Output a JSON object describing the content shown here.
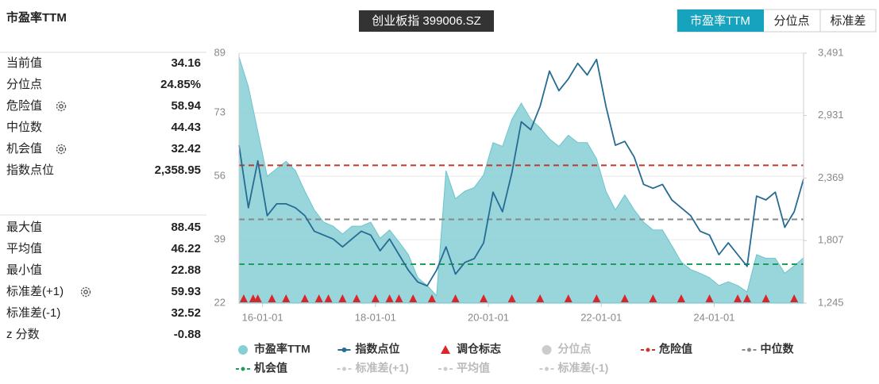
{
  "header": {
    "title": "市盈率TTM",
    "index_label": "创业板指 399006.SZ",
    "tabs": [
      "市盈率TTM",
      "分位点",
      "标准差"
    ]
  },
  "stats": {
    "groups": [
      [
        {
          "label": "当前值",
          "value": "34.16"
        },
        {
          "label": "分位点",
          "value": "24.85%"
        },
        {
          "label": "危险值",
          "value": "58.94"
        },
        {
          "label": "中位数",
          "value": "44.43"
        },
        {
          "label": "机会值",
          "value": "32.42"
        },
        {
          "label": "指数点位",
          "value": "2,358.95"
        }
      ],
      [
        {
          "label": "最大值",
          "value": "88.45"
        },
        {
          "label": "平均值",
          "value": "46.22"
        },
        {
          "label": "最小值",
          "value": "22.88"
        },
        {
          "label": "标准差(+1)",
          "value": "59.93"
        },
        {
          "label": "标准差(-1)",
          "value": "32.52"
        },
        {
          "label": "z 分数",
          "value": "-0.88"
        }
      ]
    ]
  },
  "chart_data": {
    "type": "line",
    "x": [
      "15-08-01",
      "15-10-01",
      "15-12-01",
      "16-02-01",
      "16-04-01",
      "16-06-01",
      "16-08-01",
      "16-10-01",
      "16-12-01",
      "17-02-01",
      "17-04-01",
      "17-06-01",
      "17-08-01",
      "17-10-01",
      "17-12-01",
      "18-02-01",
      "18-04-01",
      "18-06-01",
      "18-08-01",
      "18-10-01",
      "18-12-01",
      "19-02-01",
      "19-04-01",
      "19-06-01",
      "19-08-01",
      "19-10-01",
      "19-12-01",
      "20-02-01",
      "20-04-01",
      "20-06-01",
      "20-08-01",
      "20-10-01",
      "20-12-01",
      "21-02-01",
      "21-04-01",
      "21-06-01",
      "21-08-01",
      "21-10-01",
      "21-12-01",
      "22-02-01",
      "22-04-01",
      "22-06-01",
      "22-08-01",
      "22-10-01",
      "22-12-01",
      "23-02-01",
      "23-04-01",
      "23-06-01",
      "23-08-01",
      "23-10-01",
      "23-12-01",
      "24-02-01",
      "24-04-01",
      "24-06-01",
      "24-08-01",
      "24-10-01",
      "24-12-01",
      "25-02-01",
      "25-04-01",
      "25-06-01",
      "25-08-01"
    ],
    "series": [
      {
        "name": "市盈率TTM",
        "style": "area",
        "color": "#86cfd6",
        "values": [
          88,
          80,
          68,
          56,
          58,
          60,
          57.5,
          52,
          47,
          43.7,
          42.6,
          40.5,
          42.6,
          42.6,
          43.7,
          39.4,
          41.6,
          38.4,
          35,
          28.8,
          26.7,
          24,
          57.5,
          50,
          52,
          53,
          56.4,
          65,
          64,
          71.3,
          75.6,
          71.3,
          69,
          66,
          64,
          67,
          65,
          65,
          60.7,
          52,
          47,
          51,
          47,
          43.7,
          41.6,
          41.6,
          37.4,
          33,
          31,
          30,
          28.8,
          26.7,
          27.7,
          26.7,
          25,
          35,
          34,
          34,
          30,
          32,
          34.16
        ]
      },
      {
        "name": "指数点位",
        "style": "line",
        "axis": "y2",
        "color": "#276b93",
        "values": [
          2663,
          2101,
          2523,
          2031,
          2137,
          2137,
          2101,
          2031,
          1891,
          1856,
          1821,
          1750,
          1821,
          1891,
          1856,
          1715,
          1821,
          1680,
          1540,
          1435,
          1400,
          1540,
          1750,
          1505,
          1610,
          1645,
          1786,
          2242,
          2066,
          2417,
          2874,
          2803,
          3014,
          3330,
          3154,
          3260,
          3400,
          3295,
          3435,
          3014,
          2663,
          2698,
          2558,
          2312,
          2277,
          2312,
          2172,
          2101,
          2031,
          1891,
          1856,
          1680,
          1786,
          1680,
          1575,
          2207,
          2172,
          2242,
          1926,
          2066,
          2358.95
        ]
      },
      {
        "name": "调仓标志",
        "style": "marker",
        "color": "#d9262c",
        "x": [
          "15-09-01",
          "15-11-01",
          "15-12-01",
          "16-03-01",
          "16-06-01",
          "16-10-01",
          "17-01-01",
          "17-03-01",
          "17-06-01",
          "17-09-01",
          "18-01-01",
          "18-04-01",
          "18-06-01",
          "18-09-01",
          "19-01-01",
          "19-06-01",
          "19-12-01",
          "20-06-01",
          "20-12-01",
          "21-06-01",
          "21-12-01",
          "22-06-01",
          "22-12-01",
          "23-06-01",
          "23-12-01",
          "24-06-01",
          "24-08-01",
          "24-12-01",
          "25-06-01"
        ]
      },
      {
        "name": "分位点",
        "style": "point",
        "color": "#cccccc",
        "hidden": true
      },
      {
        "name": "危险值",
        "style": "hline",
        "color": "#c0392b",
        "value": 58.94
      },
      {
        "name": "中位数",
        "style": "hline",
        "color": "#888888",
        "value": 44.43
      },
      {
        "name": "机会值",
        "style": "hline",
        "color": "#1e9e5a",
        "value": 32.42
      },
      {
        "name": "标准差(+1)",
        "style": "hline",
        "color": "#cccccc",
        "hidden": true
      },
      {
        "name": "平均值",
        "style": "hline",
        "color": "#cccccc",
        "hidden": true
      },
      {
        "name": "标准差(-1)",
        "style": "hline",
        "color": "#cccccc",
        "hidden": true
      }
    ],
    "xlim": [
      "15-08-01",
      "25-08-01"
    ],
    "xticks": [
      "16-01-01",
      "18-01-01",
      "20-01-01",
      "22-01-01",
      "24-01-01"
    ],
    "ylim": [
      22,
      89
    ],
    "yticks": [
      22,
      39,
      56,
      73,
      89
    ],
    "y2lim": [
      1245,
      3491
    ],
    "y2ticks": [
      {
        "value": 1245,
        "label": "1,245"
      },
      {
        "value": 1807,
        "label": "1,807"
      },
      {
        "value": 2369,
        "label": "2,369"
      },
      {
        "value": 2931,
        "label": "2,931"
      },
      {
        "value": 3491,
        "label": "3,491"
      }
    ],
    "grid": true
  }
}
